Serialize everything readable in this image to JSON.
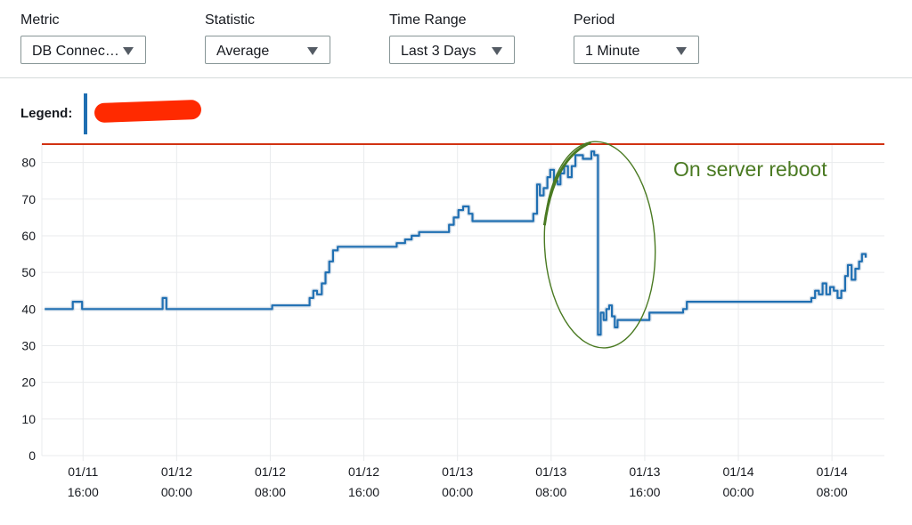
{
  "controls": {
    "metric": {
      "label": "Metric",
      "value": "DB Connec…"
    },
    "statistic": {
      "label": "Statistic",
      "value": "Average"
    },
    "time_range": {
      "label": "Time Range",
      "value": "Last 3 Days"
    },
    "period": {
      "label": "Period",
      "value": "1 Minute"
    }
  },
  "legend": {
    "label": "Legend:",
    "series_color": "#1f6fb2",
    "redaction_color": "#ff2a00"
  },
  "annotation": {
    "text": "On server reboot",
    "color": "#4a7a22"
  },
  "colors": {
    "line": "#1f6fb2",
    "threshold": "#d13212",
    "grid": "#e9ebed",
    "annotation": "#4a7a22"
  },
  "chart_data": {
    "type": "line",
    "ylim": [
      0,
      85
    ],
    "xlim": [
      -4.4,
      85.6
    ],
    "yticks": [
      0,
      10,
      20,
      30,
      40,
      50,
      60,
      70,
      80
    ],
    "xticks": [
      {
        "value": 0,
        "label": [
          "01/11",
          "16:00"
        ]
      },
      {
        "value": 10,
        "label": [
          "01/12",
          "00:00"
        ]
      },
      {
        "value": 20,
        "label": [
          "01/12",
          "08:00"
        ]
      },
      {
        "value": 30,
        "label": [
          "01/12",
          "16:00"
        ]
      },
      {
        "value": 40,
        "label": [
          "01/13",
          "00:00"
        ]
      },
      {
        "value": 50,
        "label": [
          "01/13",
          "08:00"
        ]
      },
      {
        "value": 60,
        "label": [
          "01/13",
          "16:00"
        ]
      },
      {
        "value": 70,
        "label": [
          "01/14",
          "00:00"
        ]
      },
      {
        "value": 80,
        "label": [
          "01/14",
          "08:00"
        ]
      }
    ],
    "threshold": 85,
    "series": [
      {
        "points": [
          [
            -4.1,
            40
          ],
          [
            -1.1,
            40
          ],
          [
            -1.1,
            42
          ],
          [
            -0.1,
            42
          ],
          [
            -0.1,
            40
          ],
          [
            8.5,
            40
          ],
          [
            8.5,
            43
          ],
          [
            8.9,
            43
          ],
          [
            8.9,
            40
          ],
          [
            20.2,
            40
          ],
          [
            20.2,
            41
          ],
          [
            24.2,
            41
          ],
          [
            24.2,
            43
          ],
          [
            24.6,
            43
          ],
          [
            24.6,
            45
          ],
          [
            25.0,
            45
          ],
          [
            25.0,
            44
          ],
          [
            25.5,
            44
          ],
          [
            25.5,
            47
          ],
          [
            25.9,
            47
          ],
          [
            25.9,
            50
          ],
          [
            26.3,
            50
          ],
          [
            26.3,
            53
          ],
          [
            26.7,
            53
          ],
          [
            26.7,
            56
          ],
          [
            27.2,
            56
          ],
          [
            27.2,
            57
          ],
          [
            33.5,
            57
          ],
          [
            33.5,
            58
          ],
          [
            34.4,
            58
          ],
          [
            34.4,
            59
          ],
          [
            35.1,
            59
          ],
          [
            35.1,
            60
          ],
          [
            35.9,
            60
          ],
          [
            35.9,
            61
          ],
          [
            39.1,
            61
          ],
          [
            39.1,
            63
          ],
          [
            39.6,
            63
          ],
          [
            39.6,
            65
          ],
          [
            40.1,
            65
          ],
          [
            40.1,
            67
          ],
          [
            40.6,
            67
          ],
          [
            40.6,
            68
          ],
          [
            41.2,
            68
          ],
          [
            41.2,
            66
          ],
          [
            41.6,
            66
          ],
          [
            41.6,
            64
          ],
          [
            48.1,
            64
          ],
          [
            48.1,
            66
          ],
          [
            48.5,
            66
          ],
          [
            48.5,
            74
          ],
          [
            48.8,
            74
          ],
          [
            48.8,
            71
          ],
          [
            49.2,
            71
          ],
          [
            49.2,
            73
          ],
          [
            49.6,
            73
          ],
          [
            49.6,
            76
          ],
          [
            49.9,
            76
          ],
          [
            49.9,
            78
          ],
          [
            50.3,
            78
          ],
          [
            50.3,
            75
          ],
          [
            50.7,
            75
          ],
          [
            50.7,
            74
          ],
          [
            51.0,
            74
          ],
          [
            51.0,
            77
          ],
          [
            51.4,
            77
          ],
          [
            51.4,
            79
          ],
          [
            51.8,
            79
          ],
          [
            51.8,
            76
          ],
          [
            52.2,
            76
          ],
          [
            52.2,
            79
          ],
          [
            52.6,
            79
          ],
          [
            52.6,
            82
          ],
          [
            53.4,
            82
          ],
          [
            53.4,
            81
          ],
          [
            54.3,
            81
          ],
          [
            54.3,
            83
          ],
          [
            54.6,
            83
          ],
          [
            54.6,
            82
          ],
          [
            55.0,
            82
          ],
          [
            55.0,
            33
          ],
          [
            55.3,
            33
          ],
          [
            55.3,
            39
          ],
          [
            55.6,
            39
          ],
          [
            55.6,
            37
          ],
          [
            55.9,
            37
          ],
          [
            55.9,
            40
          ],
          [
            56.2,
            40
          ],
          [
            56.2,
            41
          ],
          [
            56.5,
            41
          ],
          [
            56.5,
            38
          ],
          [
            56.8,
            38
          ],
          [
            56.8,
            35
          ],
          [
            57.1,
            35
          ],
          [
            57.1,
            37
          ],
          [
            60.5,
            37
          ],
          [
            60.5,
            39
          ],
          [
            64.1,
            39
          ],
          [
            64.1,
            40
          ],
          [
            64.5,
            40
          ],
          [
            64.5,
            42
          ],
          [
            77.8,
            42
          ],
          [
            77.8,
            43
          ],
          [
            78.2,
            43
          ],
          [
            78.2,
            45
          ],
          [
            78.6,
            45
          ],
          [
            78.6,
            44
          ],
          [
            79.0,
            44
          ],
          [
            79.0,
            47
          ],
          [
            79.4,
            47
          ],
          [
            79.4,
            44
          ],
          [
            79.8,
            44
          ],
          [
            79.8,
            46
          ],
          [
            80.2,
            46
          ],
          [
            80.2,
            45
          ],
          [
            80.6,
            45
          ],
          [
            80.6,
            43
          ],
          [
            81.0,
            43
          ],
          [
            81.0,
            45
          ],
          [
            81.4,
            45
          ],
          [
            81.4,
            49
          ],
          [
            81.7,
            49
          ],
          [
            81.7,
            52
          ],
          [
            82.1,
            52
          ],
          [
            82.1,
            48
          ],
          [
            82.5,
            48
          ],
          [
            82.5,
            51
          ],
          [
            82.9,
            51
          ],
          [
            82.9,
            53
          ],
          [
            83.2,
            53
          ],
          [
            83.2,
            55
          ],
          [
            83.6,
            55
          ],
          [
            83.6,
            54
          ]
        ]
      }
    ]
  }
}
